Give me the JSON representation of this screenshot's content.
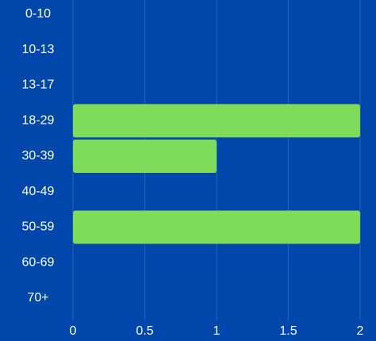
{
  "chart_data": {
    "type": "bar",
    "orientation": "horizontal",
    "categories": [
      "0-10",
      "10-13",
      "13-17",
      "18-29",
      "30-39",
      "40-49",
      "50-59",
      "60-69",
      "70+"
    ],
    "values": [
      0,
      0,
      0,
      2,
      1,
      0,
      2,
      0,
      0
    ],
    "x_ticks": [
      "0",
      "0.5",
      "1",
      "1.5",
      "2"
    ],
    "xlim": [
      0,
      2
    ],
    "grid": true,
    "legend": "none",
    "colors": {
      "background": "#0047AB",
      "bar": "#7FDB5A",
      "grid": "#2A64BF",
      "text": "#FFFFFF"
    }
  }
}
